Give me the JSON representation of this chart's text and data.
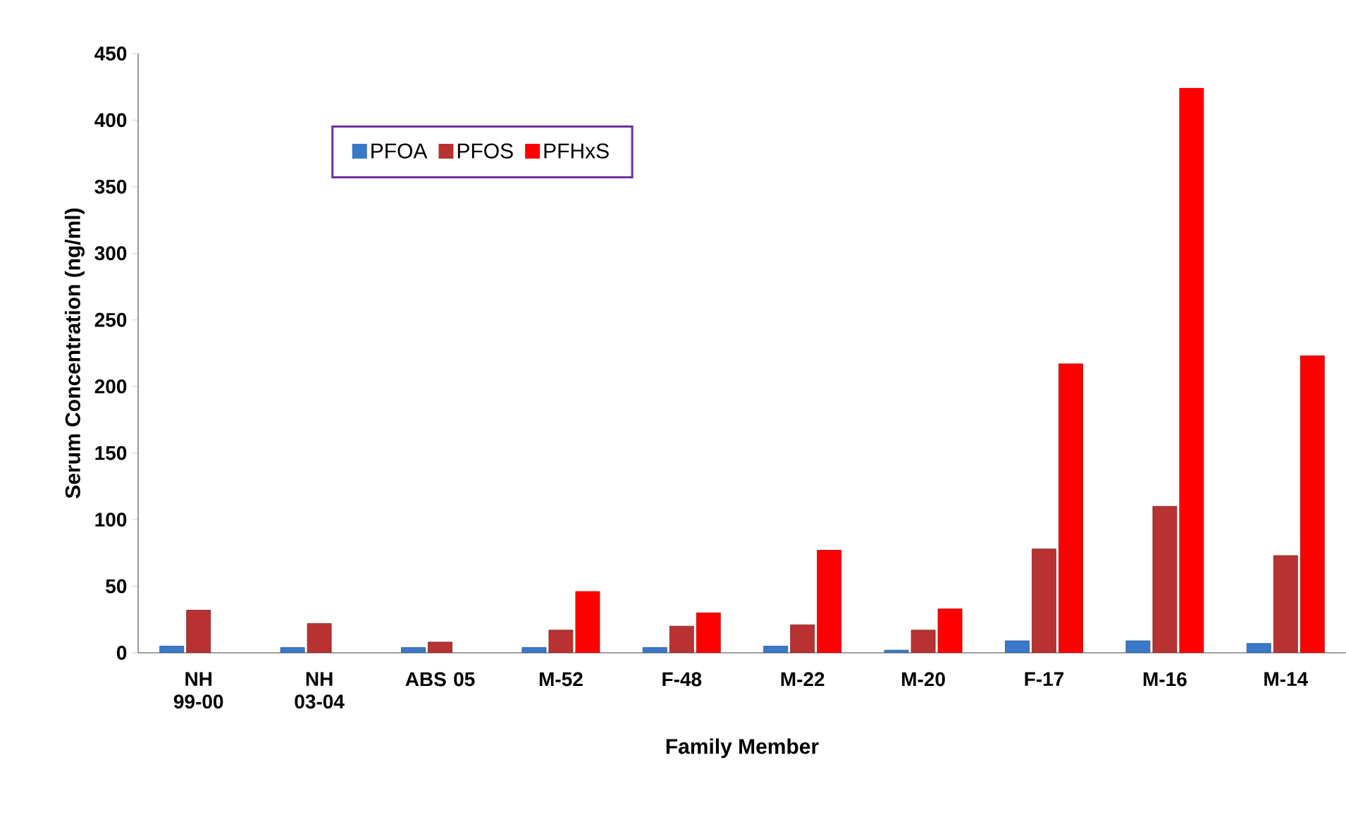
{
  "chart_data": {
    "type": "bar",
    "xlabel": "Family Member",
    "ylabel": "Serum Concentration (ng/ml)",
    "categories": [
      "NH 99-00",
      "NH 03-04",
      "ABS 05",
      "M-52",
      "F-48",
      "M-22",
      "M-20",
      "F-17",
      "M-16",
      "M-14"
    ],
    "series": [
      {
        "name": "PFOA",
        "color": "#3a78c8",
        "values": [
          5,
          4,
          4,
          4,
          4,
          5,
          2,
          9,
          9,
          7
        ]
      },
      {
        "name": "PFOS",
        "color": "#b83232",
        "values": [
          32,
          22,
          8,
          17,
          20,
          21,
          17,
          78,
          110,
          73
        ]
      },
      {
        "name": "PFHxS",
        "color": "#ff0000",
        "values": [
          null,
          null,
          null,
          46,
          30,
          77,
          33,
          217,
          424,
          223
        ]
      }
    ],
    "ylim": [
      0,
      450
    ],
    "yticks": [
      0,
      50,
      100,
      150,
      200,
      250,
      300,
      350,
      400,
      450
    ],
    "grid": false,
    "legend": "top left"
  }
}
